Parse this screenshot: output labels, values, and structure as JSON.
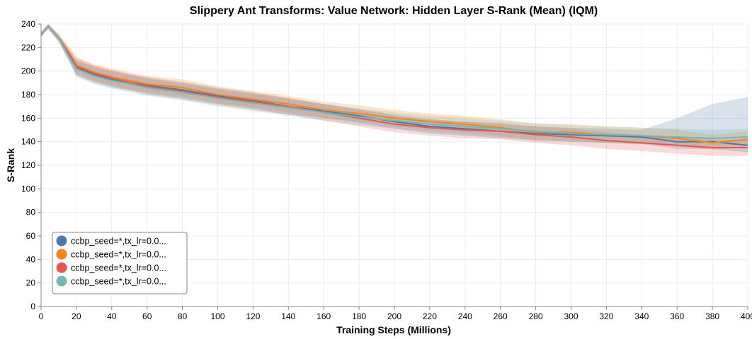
{
  "chart_data": {
    "type": "line",
    "title": "Slippery Ant Transforms: Value Network: Hidden Layer S-Rank (Mean) (IQM)",
    "xlabel": "Training Steps (Millions)",
    "ylabel": "S-Rank",
    "xlim": [
      0,
      400
    ],
    "ylim": [
      0,
      240
    ],
    "x_ticks": [
      0,
      20,
      40,
      60,
      80,
      100,
      120,
      140,
      160,
      180,
      200,
      220,
      240,
      260,
      280,
      300,
      320,
      340,
      360,
      380,
      400
    ],
    "y_ticks": [
      0,
      20,
      40,
      60,
      80,
      100,
      120,
      140,
      160,
      180,
      200,
      220,
      240
    ],
    "grid": true,
    "legend_position": "bottom-left",
    "x": [
      0,
      4,
      10,
      16,
      20,
      30,
      40,
      60,
      80,
      100,
      120,
      140,
      160,
      180,
      200,
      220,
      240,
      260,
      280,
      300,
      320,
      340,
      360,
      380,
      400
    ],
    "series": [
      {
        "name": "ccbp_seed=*,tx_lr=0.0...",
        "color": "#4c78a8",
        "values": [
          231,
          238,
          228,
          213,
          203,
          197,
          193,
          188,
          184,
          179,
          175,
          170,
          166,
          162,
          157,
          153,
          151,
          149,
          147,
          146,
          145,
          144,
          140,
          140,
          137
        ],
        "band_lower": [
          229,
          236,
          225,
          208,
          196,
          190,
          186,
          181,
          177,
          172,
          168,
          163,
          160,
          156,
          151,
          147,
          145,
          143,
          141,
          140,
          139,
          138,
          134,
          134,
          131
        ],
        "band_upper": [
          233,
          240,
          231,
          217,
          209,
          204,
          200,
          195,
          191,
          186,
          182,
          177,
          172,
          168,
          163,
          159,
          157,
          155,
          153,
          152,
          151,
          150,
          160,
          172,
          178
        ]
      },
      {
        "name": "ccbp_seed=*,tx_lr=0.0...",
        "color": "#f58518",
        "values": [
          231,
          238,
          228,
          215,
          205,
          199,
          195,
          189,
          186,
          180,
          176,
          172,
          167,
          164,
          160,
          157,
          155,
          152,
          148,
          148,
          146,
          145,
          143,
          139,
          142
        ],
        "band_lower": [
          229,
          236,
          225,
          210,
          198,
          192,
          188,
          182,
          179,
          173,
          169,
          165,
          160,
          157,
          153,
          150,
          148,
          145,
          141,
          141,
          139,
          138,
          136,
          133,
          135
        ],
        "band_upper": [
          233,
          240,
          231,
          220,
          212,
          206,
          202,
          196,
          193,
          187,
          183,
          179,
          174,
          171,
          167,
          164,
          162,
          159,
          155,
          155,
          153,
          152,
          150,
          146,
          149
        ]
      },
      {
        "name": "ccbp_seed=*,tx_lr=0.0...",
        "color": "#e45756",
        "values": [
          231,
          238,
          228,
          214,
          204,
          198,
          194,
          187,
          183,
          178,
          174,
          170,
          165,
          160,
          155,
          152,
          150,
          149,
          146,
          144,
          141,
          139,
          137,
          135,
          135
        ],
        "band_lower": [
          229,
          236,
          225,
          209,
          197,
          191,
          187,
          180,
          176,
          171,
          167,
          163,
          158,
          153,
          148,
          145,
          143,
          142,
          139,
          137,
          134,
          132,
          130,
          128,
          128
        ],
        "band_upper": [
          233,
          240,
          231,
          219,
          211,
          205,
          201,
          194,
          190,
          185,
          181,
          177,
          172,
          167,
          162,
          159,
          157,
          156,
          153,
          151,
          148,
          146,
          144,
          142,
          142
        ]
      },
      {
        "name": "ccbp_seed=*,tx_lr=0.0...",
        "color": "#72b7b2",
        "values": [
          231,
          238,
          228,
          212,
          202,
          196,
          192,
          186,
          182,
          177,
          173,
          169,
          165,
          161,
          158,
          155,
          153,
          151,
          149,
          147,
          146,
          145,
          144,
          143,
          144
        ],
        "band_lower": [
          229,
          236,
          225,
          207,
          195,
          189,
          185,
          179,
          175,
          170,
          166,
          162,
          158,
          154,
          151,
          148,
          146,
          144,
          142,
          140,
          139,
          138,
          137,
          136,
          137
        ],
        "band_upper": [
          233,
          240,
          231,
          217,
          209,
          203,
          199,
          193,
          189,
          184,
          180,
          176,
          172,
          168,
          165,
          162,
          160,
          158,
          156,
          154,
          153,
          152,
          151,
          150,
          151
        ]
      }
    ]
  }
}
